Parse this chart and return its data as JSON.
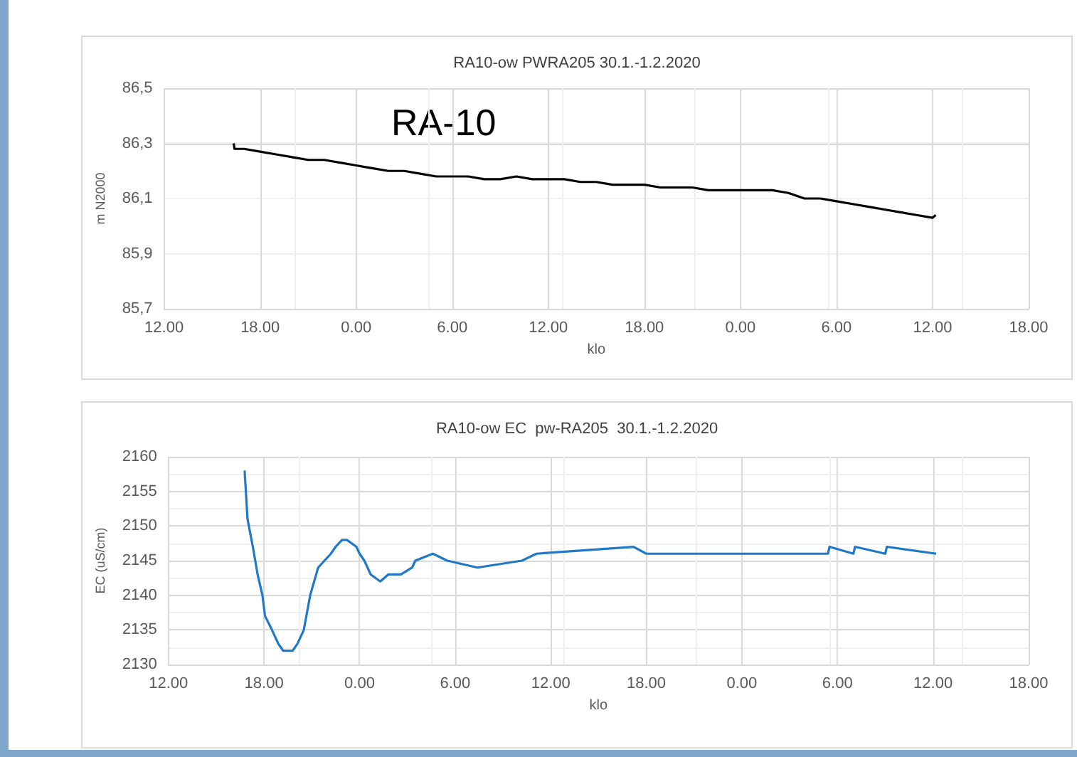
{
  "chart_data": [
    {
      "type": "line",
      "title": "RA10-ow PWRA205 30.1.-1.2.2020",
      "xlabel": "klo",
      "ylabel": "m N2000",
      "annotations": [
        "RA-10"
      ],
      "x": [
        "2020-01-30T16:21",
        "2020-01-30T16:24",
        "2020-01-30T17:00",
        "2020-01-30T18:00",
        "2020-01-30T19:00",
        "2020-01-30T20:00",
        "2020-01-30T21:00",
        "2020-01-30T22:00",
        "2020-01-30T23:00",
        "2020-01-31T00:00",
        "2020-01-31T01:00",
        "2020-01-31T02:00",
        "2020-01-31T03:00",
        "2020-01-31T04:00",
        "2020-01-31T05:00",
        "2020-01-31T06:00",
        "2020-01-31T07:00",
        "2020-01-31T08:00",
        "2020-01-31T09:00",
        "2020-01-31T10:00",
        "2020-01-31T11:00",
        "2020-01-31T12:00",
        "2020-01-31T13:00",
        "2020-01-31T14:00",
        "2020-01-31T15:00",
        "2020-01-31T16:00",
        "2020-01-31T17:00",
        "2020-01-31T18:00",
        "2020-01-31T19:00",
        "2020-01-31T20:00",
        "2020-01-31T21:00",
        "2020-01-31T22:00",
        "2020-01-31T23:00",
        "2020-02-01T00:00",
        "2020-02-01T01:00",
        "2020-02-01T02:00",
        "2020-02-01T03:00",
        "2020-02-01T04:00",
        "2020-02-01T05:00",
        "2020-02-01T06:00",
        "2020-02-01T07:00",
        "2020-02-01T08:00",
        "2020-02-01T09:00",
        "2020-02-01T10:00",
        "2020-02-01T11:00",
        "2020-02-01T12:00",
        "2020-02-01T12:12"
      ],
      "series": [
        {
          "color": "#000000",
          "values": [
            86.3,
            86.28,
            86.28,
            86.27,
            86.26,
            86.25,
            86.24,
            86.24,
            86.23,
            86.22,
            86.21,
            86.2,
            86.2,
            86.19,
            86.18,
            86.18,
            86.18,
            86.17,
            86.17,
            86.18,
            86.17,
            86.17,
            86.17,
            86.16,
            86.16,
            86.15,
            86.15,
            86.15,
            86.14,
            86.14,
            86.14,
            86.13,
            86.13,
            86.13,
            86.13,
            86.13,
            86.12,
            86.1,
            86.1,
            86.09,
            86.08,
            86.07,
            86.06,
            86.05,
            86.04,
            86.03,
            86.04
          ]
        }
      ],
      "xlim": [
        "2020-01-30T12:00",
        "2020-02-01T18:00"
      ],
      "xticks": [
        {
          "value": "2020-01-30T12:00",
          "label": "12.00"
        },
        {
          "value": "2020-01-30T18:00",
          "label": "18.00"
        },
        {
          "value": "2020-01-31T00:00",
          "label": "0.00"
        },
        {
          "value": "2020-01-31T06:00",
          "label": "6.00"
        },
        {
          "value": "2020-01-31T12:00",
          "label": "12.00"
        },
        {
          "value": "2020-01-31T18:00",
          "label": "18.00"
        },
        {
          "value": "2020-02-01T00:00",
          "label": "0.00"
        },
        {
          "value": "2020-02-01T06:00",
          "label": "6.00"
        },
        {
          "value": "2020-02-01T12:00",
          "label": "12.00"
        },
        {
          "value": "2020-02-01T18:00",
          "label": "18.00"
        }
      ],
      "ylim": [
        85.7,
        86.5
      ],
      "yticks": [
        {
          "value": 85.7,
          "label": "85,7"
        },
        {
          "value": 85.9,
          "label": "85,9"
        },
        {
          "value": 86.1,
          "label": "86,1"
        },
        {
          "value": 86.3,
          "label": "86,3"
        },
        {
          "value": 86.5,
          "label": "86,5"
        }
      ],
      "grid": true,
      "marker": "none",
      "line_style": "solid"
    },
    {
      "type": "line",
      "title": "RA10-ow EC  pw-RA205  30.1.-1.2.2020",
      "xlabel": "klo",
      "ylabel": "EC (uS/cm)",
      "x": [
        "2020-01-30T16:47",
        "2020-01-30T16:58",
        "2020-01-30T17:18",
        "2020-01-30T17:36",
        "2020-01-30T17:54",
        "2020-01-30T18:04",
        "2020-01-30T18:30",
        "2020-01-30T18:54",
        "2020-01-30T19:12",
        "2020-01-30T19:48",
        "2020-01-30T20:06",
        "2020-01-30T20:30",
        "2020-01-30T20:54",
        "2020-01-30T21:24",
        "2020-01-30T21:48",
        "2020-01-30T22:12",
        "2020-01-30T22:30",
        "2020-01-30T22:54",
        "2020-01-30T23:12",
        "2020-01-30T23:48",
        "2020-01-31T00:00",
        "2020-01-31T00:18",
        "2020-01-31T00:30",
        "2020-01-31T00:42",
        "2020-01-31T01:18",
        "2020-01-31T01:48",
        "2020-01-31T02:36",
        "2020-01-31T03:18",
        "2020-01-31T03:30",
        "2020-01-31T04:36",
        "2020-01-31T05:30",
        "2020-01-31T07:24",
        "2020-01-31T10:12",
        "2020-01-31T11:06",
        "2020-01-31T17:12",
        "2020-01-31T18:00",
        "2020-02-01T05:24",
        "2020-02-01T05:30",
        "2020-02-01T07:00",
        "2020-02-01T07:06",
        "2020-02-01T09:00",
        "2020-02-01T09:06",
        "2020-02-01T12:12"
      ],
      "series": [
        {
          "color": "#1f78c8",
          "values": [
            2158,
            2151,
            2147,
            2143,
            2140,
            2137,
            2135,
            2133,
            2132,
            2132,
            2133,
            2135,
            2140,
            2144,
            2145,
            2146,
            2147,
            2148,
            2148,
            2147,
            2146,
            2145,
            2144,
            2143,
            2142,
            2143,
            2143,
            2144,
            2145,
            2146,
            2145,
            2144,
            2145,
            2146,
            2147,
            2146,
            2146,
            2147,
            2146,
            2147,
            2146,
            2147,
            2146
          ]
        }
      ],
      "xlim": [
        "2020-01-30T12:00",
        "2020-02-01T18:00"
      ],
      "xticks": [
        {
          "value": "2020-01-30T12:00",
          "label": "12.00"
        },
        {
          "value": "2020-01-30T18:00",
          "label": "18.00"
        },
        {
          "value": "2020-01-31T00:00",
          "label": "0.00"
        },
        {
          "value": "2020-01-31T06:00",
          "label": "6.00"
        },
        {
          "value": "2020-01-31T12:00",
          "label": "12.00"
        },
        {
          "value": "2020-01-31T18:00",
          "label": "18.00"
        },
        {
          "value": "2020-02-01T00:00",
          "label": "0.00"
        },
        {
          "value": "2020-02-01T06:00",
          "label": "6.00"
        },
        {
          "value": "2020-02-01T12:00",
          "label": "12.00"
        },
        {
          "value": "2020-02-01T18:00",
          "label": "18.00"
        }
      ],
      "ylim": [
        2130,
        2160
      ],
      "yticks": [
        2130,
        2135,
        2140,
        2145,
        2150,
        2155,
        2160
      ],
      "grid": true,
      "marker": "none",
      "line_style": "solid"
    }
  ]
}
